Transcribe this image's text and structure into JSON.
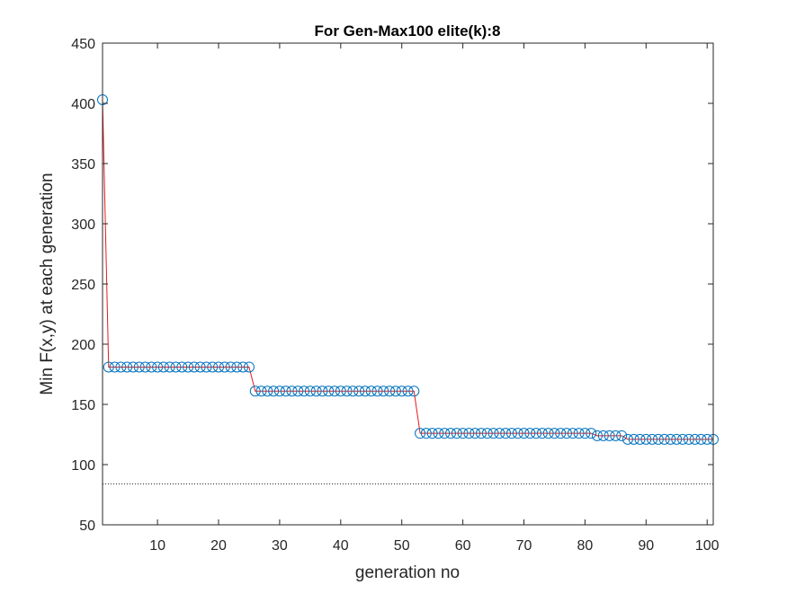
{
  "chart_data": {
    "type": "line",
    "title": "For Gen-Max100 elite(k):8",
    "xlabel": "generation no",
    "ylabel": "Min F(x,y) at each generation",
    "xlim": [
      1,
      101
    ],
    "ylim": [
      50,
      450
    ],
    "xticks": [
      10,
      20,
      30,
      40,
      50,
      60,
      70,
      80,
      90,
      100
    ],
    "yticks": [
      50,
      100,
      150,
      200,
      250,
      300,
      350,
      400,
      450
    ],
    "xtick_labels": [
      "10",
      "20",
      "30",
      "40",
      "50",
      "60",
      "70",
      "80",
      "90",
      "100"
    ],
    "ytick_labels": [
      "50",
      "100",
      "150",
      "200",
      "250",
      "300",
      "350",
      "400",
      "450"
    ],
    "grid": false,
    "reference_line": {
      "y": 84,
      "style": "dotted"
    },
    "series": [
      {
        "style": "line-with-circle-markers",
        "line_color": "#e41a1c",
        "marker_color": "#0072bd",
        "segments": [
          {
            "x_start": 1,
            "x_end": 1,
            "y": 403
          },
          {
            "x_start": 2,
            "x_end": 25,
            "y": 181
          },
          {
            "x_start": 26,
            "x_end": 52,
            "y": 161
          },
          {
            "x_start": 53,
            "x_end": 81,
            "y": 126
          },
          {
            "x_start": 82,
            "x_end": 86,
            "y": 124
          },
          {
            "x_start": 87,
            "x_end": 101,
            "y": 121
          }
        ]
      }
    ]
  }
}
